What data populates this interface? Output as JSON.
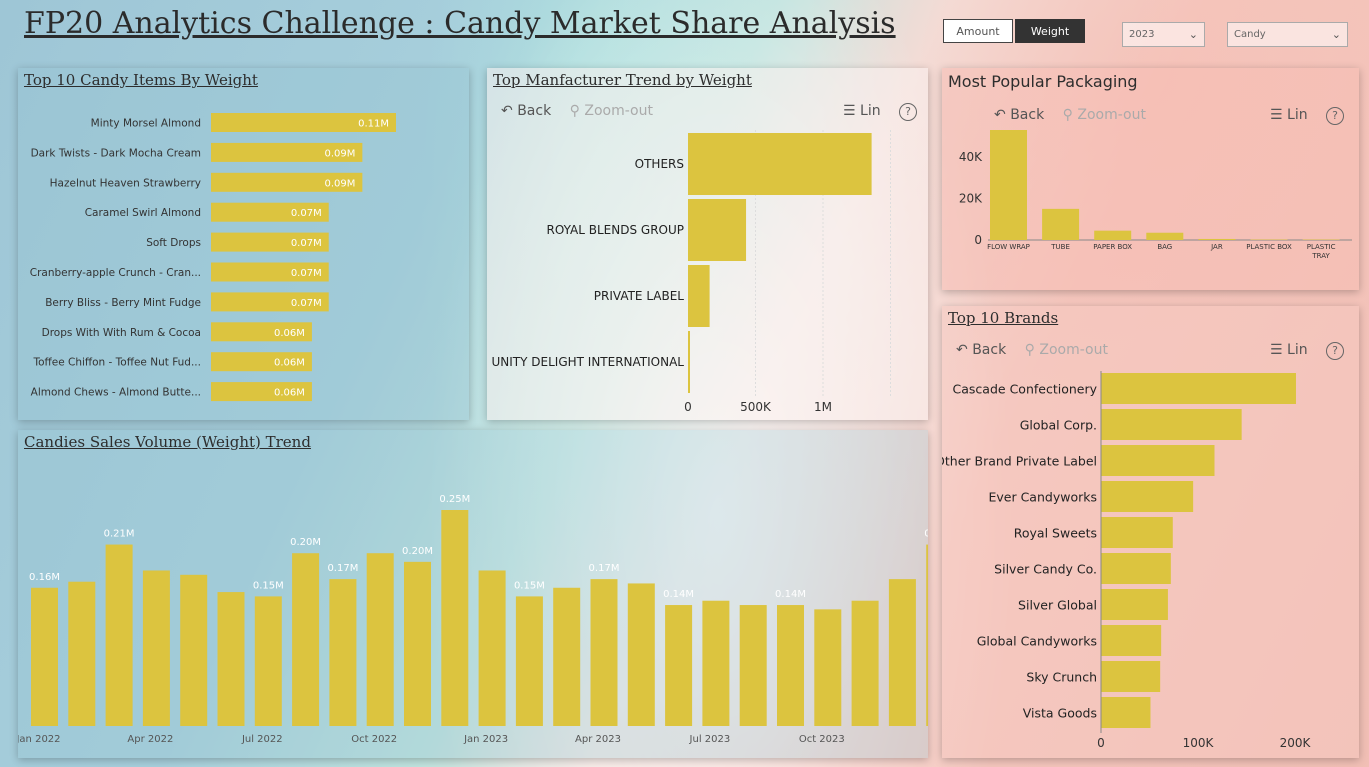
{
  "title": "FP20 Analytics Challenge : Candy Market Share Analysis",
  "toggle": {
    "amount": "Amount",
    "weight": "Weight",
    "selected": "Weight"
  },
  "filters": {
    "year": "2023",
    "category": "Candy"
  },
  "colors": {
    "bar": "#dcc43f",
    "text": "#2b2b2b"
  },
  "toolbar": {
    "back": "Back",
    "zoom_out": "Zoom-out",
    "lin": "Lin",
    "help": "?"
  },
  "top_items": {
    "title": "Top 10 Candy Items By Weight"
  },
  "manufacturer": {
    "title": "Top Manfacturer Trend by Weight"
  },
  "packaging": {
    "title": "Most Popular Packaging"
  },
  "brands": {
    "title": "Top 10 Brands"
  },
  "trend": {
    "title": "Candies Sales Volume (Weight) Trend"
  },
  "chart_data": [
    {
      "type": "bar",
      "orientation": "horizontal",
      "title": "Top 10 Candy Items By Weight",
      "categories": [
        "Minty Morsel Almond",
        "Dark Twists - Dark Mocha Cream",
        "Hazelnut Heaven Strawberry",
        "Caramel Swirl Almond",
        "Soft Drops",
        "Cranberry-apple Crunch - Cran...",
        "Berry Bliss - Berry Mint Fudge",
        "Drops With With Rum & Cocoa",
        "Toffee Chiffon - Toffee Nut Fud...",
        "Almond Chews - Almond Butte..."
      ],
      "values": [
        0.11,
        0.09,
        0.09,
        0.07,
        0.07,
        0.07,
        0.07,
        0.06,
        0.06,
        0.06
      ],
      "data_labels": [
        "0.11M",
        "0.09M",
        "0.09M",
        "0.07M",
        "0.07M",
        "0.07M",
        "0.07M",
        "0.06M",
        "0.06M",
        "0.06M"
      ]
    },
    {
      "type": "bar",
      "orientation": "horizontal",
      "title": "Top Manfacturer Trend by Weight",
      "categories": [
        "OTHERS",
        "ROYAL BLENDS GROUP",
        "PRIVATE LABEL",
        "UNITY DELIGHT INTERNATIONAL"
      ],
      "values": [
        1360000,
        430000,
        160000,
        10000
      ],
      "x_ticks": [
        "0",
        "500K",
        "1M"
      ],
      "xlim": [
        0,
        1500000
      ]
    },
    {
      "type": "bar",
      "title": "Most Popular Packaging",
      "categories": [
        "FLOW WRAP",
        "TUBE",
        "PAPER BOX",
        "BAG",
        "JAR",
        "PLASTIC BOX",
        "PLASTIC TRAY"
      ],
      "values": [
        53000,
        15000,
        4500,
        3500,
        500,
        200,
        200
      ],
      "y_ticks": [
        "40K",
        "20K",
        "0"
      ],
      "ylim": [
        0,
        53000
      ]
    },
    {
      "type": "bar",
      "orientation": "horizontal",
      "title": "Top 10 Brands",
      "categories": [
        "Cascade Confectionery",
        "Global Corp.",
        "Other Brand Private Label",
        "Ever Candyworks",
        "Royal Sweets",
        "Silver Candy Co.",
        "Silver Global",
        "Global Candyworks",
        "Sky Crunch",
        "Vista Goods"
      ],
      "values": [
        201000,
        145000,
        117000,
        95000,
        74000,
        72000,
        69000,
        62000,
        61000,
        51000
      ],
      "x_ticks": [
        "0",
        "100K",
        "200K"
      ],
      "xlim": [
        0,
        220000
      ]
    },
    {
      "type": "bar",
      "title": "Candies Sales Volume (Weight) Trend",
      "x_labels": [
        "Jan 2022",
        "Apr 2022",
        "Jul 2022",
        "Oct 2022",
        "Jan 2023",
        "Apr 2023",
        "Jul 2023",
        "Oct 2023"
      ],
      "values": [
        0.16,
        0.167,
        0.21,
        0.18,
        0.175,
        0.155,
        0.15,
        0.2,
        0.17,
        0.2,
        0.19,
        0.25,
        0.18,
        0.15,
        0.16,
        0.17,
        0.165,
        0.14,
        0.145,
        0.14,
        0.14,
        0.135,
        0.145,
        0.17,
        0.21
      ],
      "data_labels": {
        "0": "0.16M",
        "2": "0.21M",
        "6": "0.15M",
        "7": "0.20M",
        "8": "0.17M",
        "10": "0.20M",
        "11": "0.25M",
        "13": "0.15M",
        "15": "0.17M",
        "17": "0.14M",
        "20": "0.14M",
        "24": "0.21M"
      },
      "ylim": [
        0,
        0.26
      ]
    }
  ]
}
